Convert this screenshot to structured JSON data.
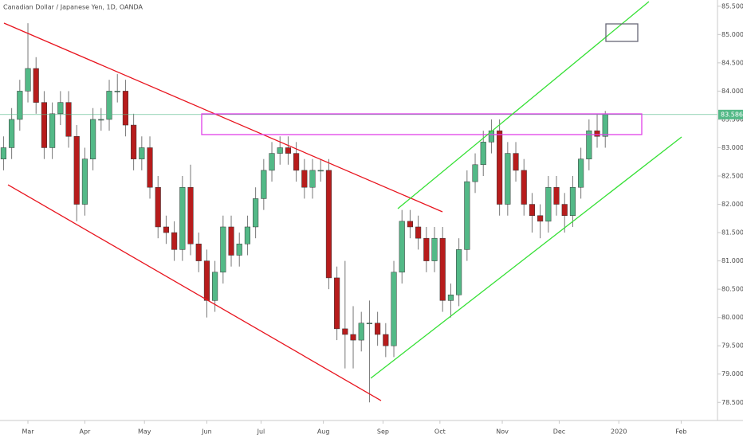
{
  "chart_data": {
    "type": "candlestick",
    "title": "Canadian Dollar / Japanese Yen, 1D, OANDA",
    "up_color": "#53b987",
    "down_color": "#b71c1c",
    "x": [
      -9,
      -6,
      -3,
      0,
      3,
      6,
      9,
      12,
      15,
      18,
      21,
      24,
      27,
      30,
      33,
      36,
      39,
      42,
      45,
      48,
      51,
      54,
      57,
      60,
      63,
      66,
      69,
      72,
      75,
      78,
      81,
      84,
      87,
      90,
      93,
      96,
      99,
      102,
      105,
      108,
      111,
      114,
      117,
      120,
      123,
      126,
      129,
      132,
      135,
      138,
      141,
      144,
      147,
      150,
      153,
      156,
      159,
      162,
      165,
      168,
      171,
      174,
      177,
      180,
      183,
      186,
      189,
      192,
      195,
      198,
      201,
      204,
      207,
      210,
      213
    ],
    "open": [
      82.8,
      83.0,
      83.5,
      84.0,
      84.4,
      83.8,
      83.0,
      83.6,
      83.8,
      83.2,
      82.0,
      82.8,
      83.5,
      83.5,
      84.0,
      84.0,
      83.4,
      82.8,
      83.0,
      82.3,
      81.6,
      81.5,
      81.2,
      82.3,
      81.3,
      81.0,
      80.3,
      80.8,
      81.6,
      81.1,
      81.3,
      81.6,
      82.1,
      82.6,
      82.9,
      83.0,
      82.9,
      82.6,
      82.3,
      82.6,
      82.6,
      80.7,
      79.8,
      79.7,
      79.6,
      79.9,
      79.9,
      79.7,
      79.5,
      80.8,
      81.7,
      81.6,
      81.4,
      81.0,
      81.4,
      80.3,
      80.4,
      81.2,
      82.4,
      82.7,
      83.1,
      83.3,
      82.0,
      82.9,
      82.6,
      82.0,
      81.8,
      81.7,
      82.3,
      82.0,
      81.8,
      82.3,
      82.8,
      83.3,
      83.2
    ],
    "high": [
      83.2,
      83.7,
      84.2,
      85.2,
      84.6,
      84.0,
      83.8,
      84.0,
      84.0,
      83.4,
      83.0,
      83.7,
      83.7,
      84.2,
      84.3,
      84.2,
      83.6,
      83.2,
      83.2,
      82.5,
      81.8,
      81.7,
      82.5,
      82.7,
      81.5,
      81.2,
      81.0,
      81.8,
      81.8,
      81.5,
      81.8,
      82.3,
      82.8,
      83.1,
      83.2,
      83.2,
      83.1,
      82.8,
      82.8,
      82.8,
      82.8,
      80.9,
      81.0,
      80.2,
      80.1,
      80.3,
      80.1,
      79.9,
      81.0,
      81.9,
      81.9,
      81.8,
      81.6,
      81.6,
      81.6,
      80.6,
      81.4,
      82.6,
      82.9,
      83.3,
      83.5,
      83.5,
      83.1,
      83.1,
      82.8,
      82.2,
      82.0,
      82.5,
      82.5,
      82.2,
      82.5,
      83.0,
      83.5,
      83.6,
      83.65
    ],
    "low": [
      82.6,
      82.8,
      83.3,
      83.8,
      83.6,
      82.8,
      82.8,
      83.4,
      83.0,
      81.7,
      81.8,
      82.6,
      83.3,
      83.3,
      83.8,
      83.2,
      82.6,
      82.6,
      82.1,
      81.4,
      81.3,
      81.0,
      81.0,
      81.1,
      80.8,
      80.0,
      80.1,
      80.6,
      80.9,
      80.9,
      81.1,
      81.4,
      81.9,
      82.4,
      82.7,
      82.7,
      82.4,
      82.1,
      82.1,
      82.4,
      80.5,
      79.6,
      79.1,
      79.1,
      79.4,
      78.5,
      79.5,
      79.3,
      79.3,
      80.6,
      81.4,
      81.2,
      80.8,
      80.8,
      80.1,
      80.0,
      80.2,
      81.0,
      82.2,
      82.5,
      82.9,
      81.8,
      81.8,
      82.4,
      81.8,
      81.5,
      81.4,
      81.5,
      81.8,
      81.5,
      81.6,
      82.1,
      82.6,
      83.0,
      83.0
    ],
    "close": [
      83.0,
      83.5,
      84.0,
      84.4,
      83.8,
      83.0,
      83.6,
      83.8,
      83.2,
      82.0,
      82.8,
      83.5,
      83.5,
      84.0,
      84.0,
      83.4,
      82.8,
      83.0,
      82.3,
      81.6,
      81.5,
      81.2,
      82.3,
      81.3,
      81.0,
      80.3,
      80.8,
      81.6,
      81.1,
      81.3,
      81.6,
      82.1,
      82.6,
      82.9,
      83.0,
      82.9,
      82.6,
      82.3,
      82.6,
      82.6,
      80.7,
      79.8,
      79.7,
      79.6,
      79.9,
      79.9,
      79.7,
      79.5,
      80.8,
      81.7,
      81.6,
      81.4,
      81.0,
      81.4,
      80.3,
      80.4,
      81.2,
      82.4,
      82.7,
      83.1,
      83.3,
      82.0,
      82.9,
      82.6,
      82.0,
      81.8,
      81.7,
      82.3,
      82.0,
      81.8,
      82.3,
      82.8,
      83.3,
      83.2,
      83.586
    ],
    "last_price": {
      "value": 83.586,
      "label": "83.586"
    },
    "xlim": [
      -10.3,
      254.4
    ],
    "xticks": [
      {
        "value": 0,
        "label": "Mar"
      },
      {
        "value": 21,
        "label": "Apr"
      },
      {
        "value": 43,
        "label": "May"
      },
      {
        "value": 66,
        "label": "Jun"
      },
      {
        "value": 86,
        "label": "Jul"
      },
      {
        "value": 109,
        "label": "Aug"
      },
      {
        "value": 131,
        "label": "Sep"
      },
      {
        "value": 152,
        "label": "Oct"
      },
      {
        "value": 175,
        "label": "Nov"
      },
      {
        "value": 196,
        "label": "Dec"
      },
      {
        "value": 218,
        "label": "2020"
      },
      {
        "value": 241,
        "label": "Feb"
      }
    ],
    "ylim": [
      78.18,
      85.61
    ],
    "yticks": [
      {
        "value": 78.5,
        "label": "78.500"
      },
      {
        "value": 79,
        "label": "79.000"
      },
      {
        "value": 79.5,
        "label": "79.500"
      },
      {
        "value": 80,
        "label": "80.000"
      },
      {
        "value": 80.5,
        "label": "80.500"
      },
      {
        "value": 81,
        "label": "81.000"
      },
      {
        "value": 81.5,
        "label": "81.500"
      },
      {
        "value": 82,
        "label": "82.000"
      },
      {
        "value": 82.5,
        "label": "82.500"
      },
      {
        "value": 83,
        "label": "83.000"
      },
      {
        "value": 83.5,
        "label": "83.500"
      },
      {
        "value": 84,
        "label": "84.000"
      },
      {
        "value": 84.5,
        "label": "84.500"
      },
      {
        "value": 85,
        "label": "85.000"
      },
      {
        "value": 85.5,
        "label": "85.500"
      }
    ]
  }
}
